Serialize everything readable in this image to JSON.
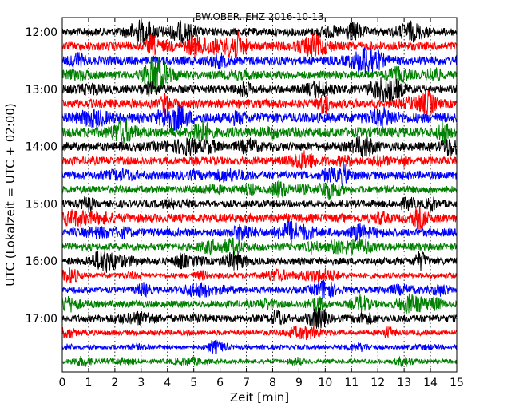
{
  "chart_data": {
    "type": "line",
    "title": "BW.OBER..EHZ 2016-10-13",
    "xlabel": "Zeit  [min]",
    "ylabel": "UTC (Lokalzeit = UTC + 02:00)",
    "xlim": [
      0,
      15
    ],
    "x_ticks": [
      "0",
      "1",
      "2",
      "3",
      "4",
      "5",
      "6",
      "7",
      "8",
      "9",
      "10",
      "11",
      "12",
      "13",
      "14",
      "15"
    ],
    "y_tick_labels": [
      "12:00",
      "13:00",
      "14:00",
      "15:00",
      "16:00",
      "17:00"
    ],
    "grid": "vertical dotted lines at each minute",
    "trace_colors": [
      "#000000",
      "#ff0000",
      "#0000ff",
      "#008000"
    ],
    "series": [
      {
        "start": "12:00",
        "color": "#000000",
        "amplitude": 0.28
      },
      {
        "start": "12:15",
        "color": "#ff0000",
        "amplitude": 0.3
      },
      {
        "start": "12:30",
        "color": "#0000ff",
        "amplitude": 0.3
      },
      {
        "start": "12:45",
        "color": "#008000",
        "amplitude": 0.28
      },
      {
        "start": "13:00",
        "color": "#000000",
        "amplitude": 0.28
      },
      {
        "start": "13:15",
        "color": "#ff0000",
        "amplitude": 0.3
      },
      {
        "start": "13:30",
        "color": "#0000ff",
        "amplitude": 0.35
      },
      {
        "start": "13:45",
        "color": "#008000",
        "amplitude": 0.35
      },
      {
        "start": "14:00",
        "color": "#000000",
        "amplitude": 0.3
      },
      {
        "start": "14:15",
        "color": "#ff0000",
        "amplitude": 0.28
      },
      {
        "start": "14:30",
        "color": "#0000ff",
        "amplitude": 0.28
      },
      {
        "start": "14:45",
        "color": "#008000",
        "amplitude": 0.25
      },
      {
        "start": "15:00",
        "color": "#000000",
        "amplitude": 0.25
      },
      {
        "start": "15:15",
        "color": "#ff0000",
        "amplitude": 0.3
      },
      {
        "start": "15:30",
        "color": "#0000ff",
        "amplitude": 0.28
      },
      {
        "start": "15:45",
        "color": "#008000",
        "amplitude": 0.25
      },
      {
        "start": "16:00",
        "color": "#000000",
        "amplitude": 0.25
      },
      {
        "start": "16:15",
        "color": "#ff0000",
        "amplitude": 0.18
      },
      {
        "start": "16:30",
        "color": "#0000ff",
        "amplitude": 0.22
      },
      {
        "start": "16:45",
        "color": "#008000",
        "amplitude": 0.25
      },
      {
        "start": "17:00",
        "color": "#000000",
        "amplitude": 0.25
      },
      {
        "start": "17:15",
        "color": "#ff0000",
        "amplitude": 0.18
      },
      {
        "start": "17:30",
        "color": "#0000ff",
        "amplitude": 0.15
      },
      {
        "start": "17:45",
        "color": "#008000",
        "amplitude": 0.15
      }
    ]
  }
}
